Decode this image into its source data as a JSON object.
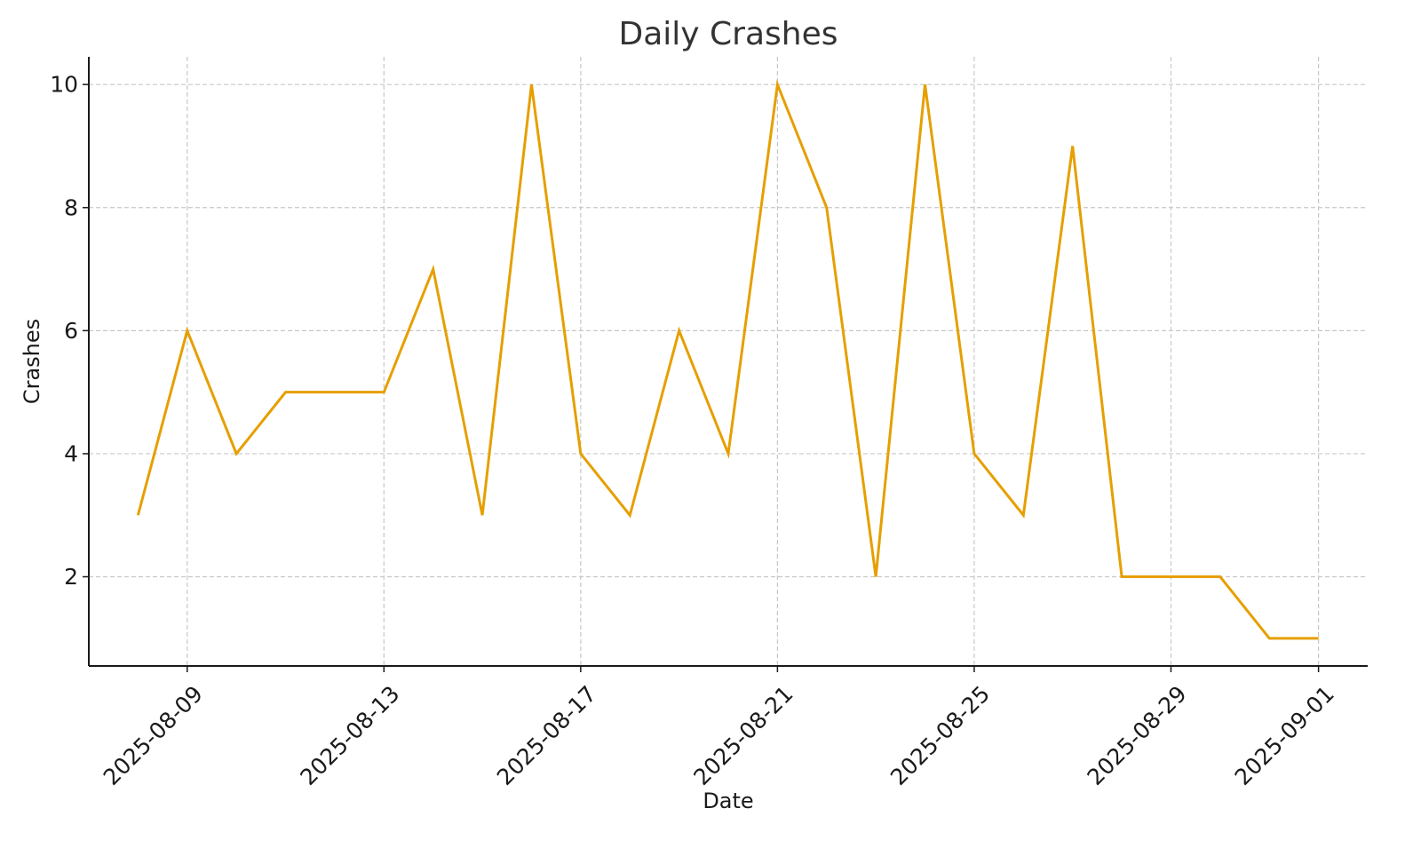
{
  "chart_data": {
    "type": "line",
    "title": "Daily Crashes",
    "xlabel": "Date",
    "ylabel": "Crashes",
    "x": [
      "2025-08-08",
      "2025-08-09",
      "2025-08-10",
      "2025-08-11",
      "2025-08-12",
      "2025-08-13",
      "2025-08-14",
      "2025-08-15",
      "2025-08-16",
      "2025-08-17",
      "2025-08-18",
      "2025-08-19",
      "2025-08-20",
      "2025-08-21",
      "2025-08-22",
      "2025-08-23",
      "2025-08-24",
      "2025-08-25",
      "2025-08-26",
      "2025-08-27",
      "2025-08-28",
      "2025-08-29",
      "2025-08-30",
      "2025-08-31",
      "2025-09-01"
    ],
    "series": [
      {
        "color": "#E69F00",
        "values": [
          3,
          6,
          4,
          5,
          5,
          5,
          7,
          3,
          10,
          4,
          3,
          6,
          4,
          10,
          8,
          2,
          10,
          4,
          3,
          9,
          2,
          2,
          2,
          1,
          1
        ]
      }
    ],
    "xticks": [
      "2025-08-09",
      "2025-08-13",
      "2025-08-17",
      "2025-08-21",
      "2025-08-25",
      "2025-08-29",
      "2025-09-01"
    ],
    "yticks": [
      2,
      4,
      6,
      8,
      10
    ],
    "xlim": [
      "2025-08-07",
      "2025-09-02"
    ],
    "ylim": [
      0.55,
      10.45
    ],
    "grid": true,
    "legend": "none"
  }
}
